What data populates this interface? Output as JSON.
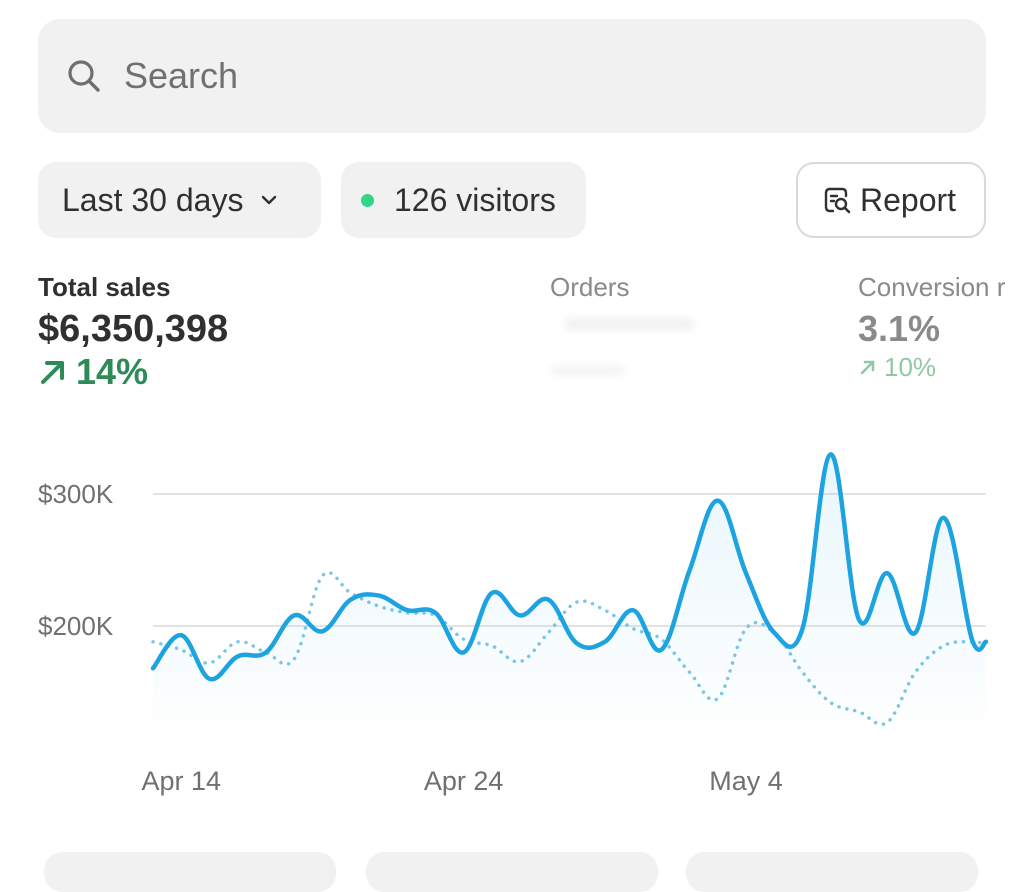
{
  "search": {
    "placeholder": "Search",
    "icon": "search-icon"
  },
  "filters": {
    "date_range": "Last 30 days",
    "visitors": "126 visitors",
    "visitors_dot_color": "#30d68a",
    "report_label": "Report"
  },
  "metrics": {
    "total_sales": {
      "label": "Total sales",
      "value": "$6,350,398",
      "delta": "14%",
      "delta_direction": "up",
      "delta_color": "#2e8b57"
    },
    "orders": {
      "label": "Orders",
      "value_obscured": true
    },
    "conversion": {
      "label": "Conversion r",
      "value": "3.1%",
      "delta": "10%",
      "delta_direction": "up"
    }
  },
  "chart_data": {
    "type": "line",
    "x_tick_labels": [
      "Apr 14",
      "Apr 24",
      "May 4"
    ],
    "x_tick_days": [
      1,
      11,
      21
    ],
    "y_tick_labels": [
      "$200K",
      "$300K"
    ],
    "y_tick_values": [
      200000,
      300000
    ],
    "ylim": [
      115000,
      335000
    ],
    "xlim": [
      0,
      29.5
    ],
    "grid": true,
    "series": [
      {
        "style": "solid",
        "color": "#1da4e0",
        "x": [
          0,
          1,
          2,
          3,
          4,
          5,
          6,
          7,
          8,
          9,
          10,
          11,
          12,
          13,
          14,
          15,
          16,
          17,
          18,
          19,
          20,
          21,
          22,
          23,
          24,
          25,
          26,
          27,
          28,
          29,
          29.5
        ],
        "values": [
          168000,
          193000,
          160000,
          177000,
          180000,
          208000,
          196000,
          220000,
          223000,
          212000,
          210000,
          180000,
          225000,
          208000,
          220000,
          187000,
          188000,
          212000,
          182000,
          242000,
          295000,
          240000,
          195000,
          198000,
          330000,
          205000,
          240000,
          195000,
          282000,
          190000,
          188000
        ]
      },
      {
        "style": "dotted",
        "color": "#7cc6e8",
        "x": [
          0,
          1,
          2,
          3,
          4,
          5,
          6,
          7,
          8,
          9,
          10,
          11,
          12,
          13,
          14,
          15,
          16,
          17,
          18,
          19,
          20,
          21,
          22,
          23,
          24,
          25,
          26,
          27,
          28,
          29,
          29.5
        ],
        "values": [
          188000,
          182000,
          172000,
          188000,
          180000,
          175000,
          238000,
          225000,
          215000,
          210000,
          208000,
          190000,
          185000,
          173000,
          195000,
          218000,
          212000,
          198000,
          190000,
          165000,
          145000,
          198000,
          195000,
          165000,
          142000,
          135000,
          127000,
          165000,
          185000,
          188000,
          186000
        ]
      }
    ]
  }
}
